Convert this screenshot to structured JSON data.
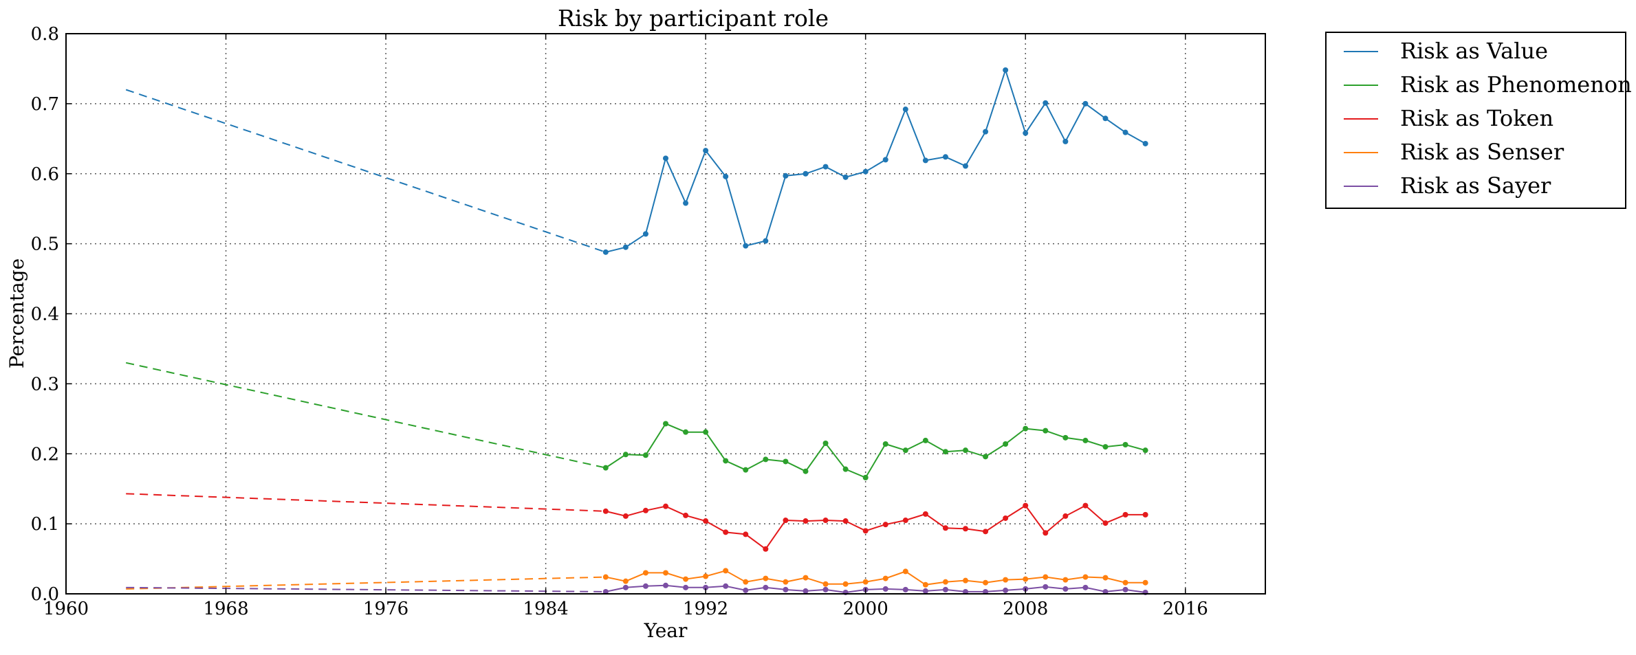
{
  "chart_data": {
    "type": "line",
    "title": "Risk by participant role",
    "xlabel": "Year",
    "ylabel": "Percentage",
    "xlim": [
      1960,
      2020
    ],
    "ylim": [
      0.0,
      0.8
    ],
    "xticks": [
      "1960",
      "1968",
      "1976",
      "1984",
      "1992",
      "2000",
      "2008",
      "2016"
    ],
    "yticks": [
      "0.0",
      "0.1",
      "0.2",
      "0.3",
      "0.4",
      "0.5",
      "0.6",
      "0.7",
      "0.8"
    ],
    "grid": true,
    "legend_position": "outside-top-right",
    "x": [
      1987,
      1988,
      1989,
      1990,
      1991,
      1992,
      1993,
      1994,
      1995,
      1996,
      1997,
      1998,
      1999,
      2000,
      2001,
      2002,
      2003,
      2004,
      2005,
      2006,
      2007,
      2008,
      2009,
      2010,
      2011,
      2012,
      2013,
      2014
    ],
    "series": [
      {
        "name": "Risk as Value",
        "color": "#1f77b4",
        "values": [
          0.488,
          0.495,
          0.514,
          0.622,
          0.558,
          0.633,
          0.596,
          0.497,
          0.504,
          0.597,
          0.6,
          0.61,
          0.595,
          0.603,
          0.62,
          0.692,
          0.619,
          0.624,
          0.611,
          0.66,
          0.748,
          0.658,
          0.701,
          0.646,
          0.7,
          0.679,
          0.659,
          0.643
        ],
        "trend": {
          "from": [
            1963,
            0.72
          ],
          "to": [
            1987,
            0.488
          ]
        }
      },
      {
        "name": "Risk as Phenomenon",
        "color": "#2ca02c",
        "values": [
          0.18,
          0.199,
          0.198,
          0.243,
          0.231,
          0.231,
          0.19,
          0.177,
          0.192,
          0.189,
          0.175,
          0.215,
          0.178,
          0.166,
          0.214,
          0.205,
          0.219,
          0.203,
          0.205,
          0.196,
          0.214,
          0.236,
          0.233,
          0.223,
          0.219,
          0.21,
          0.213,
          0.205
        ],
        "trend": {
          "from": [
            1963,
            0.33
          ],
          "to": [
            1987,
            0.18
          ]
        }
      },
      {
        "name": "Risk as Token",
        "color": "#e41a1c",
        "values": [
          0.118,
          0.111,
          0.119,
          0.125,
          0.112,
          0.104,
          0.088,
          0.085,
          0.064,
          0.105,
          0.104,
          0.105,
          0.104,
          0.09,
          0.099,
          0.105,
          0.114,
          0.094,
          0.093,
          0.089,
          0.108,
          0.126,
          0.087,
          0.111,
          0.126,
          0.101,
          0.113,
          0.113
        ],
        "trend": {
          "from": [
            1963,
            0.143
          ],
          "to": [
            1987,
            0.118
          ]
        }
      },
      {
        "name": "Risk as Senser",
        "color": "#ff7f0e",
        "values": [
          0.024,
          0.018,
          0.03,
          0.03,
          0.021,
          0.025,
          0.033,
          0.017,
          0.022,
          0.017,
          0.023,
          0.014,
          0.014,
          0.017,
          0.022,
          0.032,
          0.013,
          0.017,
          0.019,
          0.016,
          0.02,
          0.021,
          0.024,
          0.02,
          0.024,
          0.023,
          0.016,
          0.016
        ],
        "trend": {
          "from": [
            1963,
            0.007
          ],
          "to": [
            1987,
            0.024
          ]
        }
      },
      {
        "name": "Risk as Sayer",
        "color": "#7b4ea3",
        "values": [
          0.003,
          0.009,
          0.011,
          0.012,
          0.009,
          0.009,
          0.011,
          0.005,
          0.009,
          0.006,
          0.004,
          0.006,
          0.002,
          0.006,
          0.007,
          0.006,
          0.004,
          0.006,
          0.003,
          0.003,
          0.005,
          0.007,
          0.01,
          0.007,
          0.009,
          0.003,
          0.006,
          0.002
        ],
        "trend": {
          "from": [
            1963,
            0.009
          ],
          "to": [
            1987,
            0.003
          ]
        }
      }
    ]
  }
}
